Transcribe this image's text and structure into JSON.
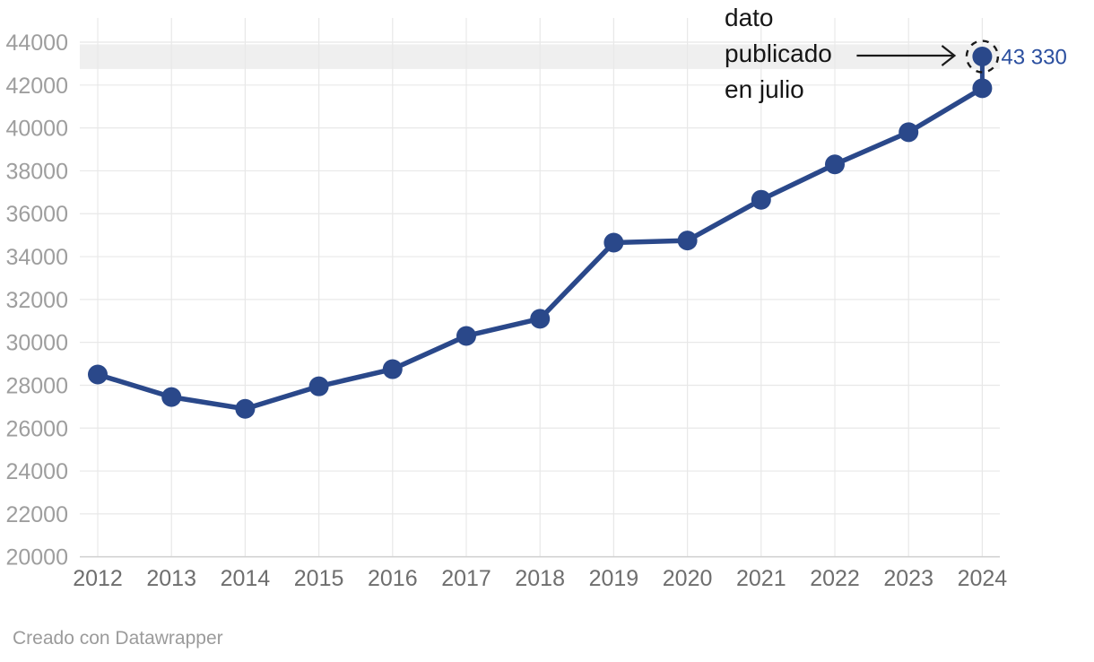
{
  "chart_data": {
    "type": "line",
    "title": "",
    "xlabel": "",
    "ylabel": "",
    "x": [
      "2012",
      "2013",
      "2014",
      "2015",
      "2016",
      "2017",
      "2018",
      "2019",
      "2020",
      "2021",
      "2022",
      "2023",
      "2024"
    ],
    "series": [
      {
        "name": "",
        "values": [
          28500,
          27450,
          26900,
          27950,
          28750,
          30300,
          31100,
          34650,
          34750,
          36650,
          38300,
          39800,
          41850
        ]
      }
    ],
    "published_point": {
      "x": "2024",
      "value": 43330,
      "label": "43 330"
    },
    "annotation": {
      "lines": [
        "dato",
        "publicado",
        "en julio"
      ]
    },
    "highlight_band": {
      "from": 42750,
      "to": 43900
    },
    "ylim": [
      20000,
      44000
    ],
    "y_ticks": [
      20000,
      22000,
      24000,
      26000,
      28000,
      30000,
      32000,
      34000,
      36000,
      38000,
      40000,
      42000,
      44000
    ],
    "grid": true,
    "legend": "none"
  },
  "footer": {
    "text": "Creado con Datawrapper"
  },
  "colors": {
    "line": "#2a488a",
    "published_label": "#2b4f9f",
    "annotation": "#1a1a1a",
    "band": "#efefef",
    "grid": "#e8e8e8",
    "baseline": "#d2d2d2",
    "x_ticks": "#6e6e6e",
    "y_ticks": "#9e9e9e",
    "footer": "#9b9b9b",
    "background": "#ffffff"
  }
}
